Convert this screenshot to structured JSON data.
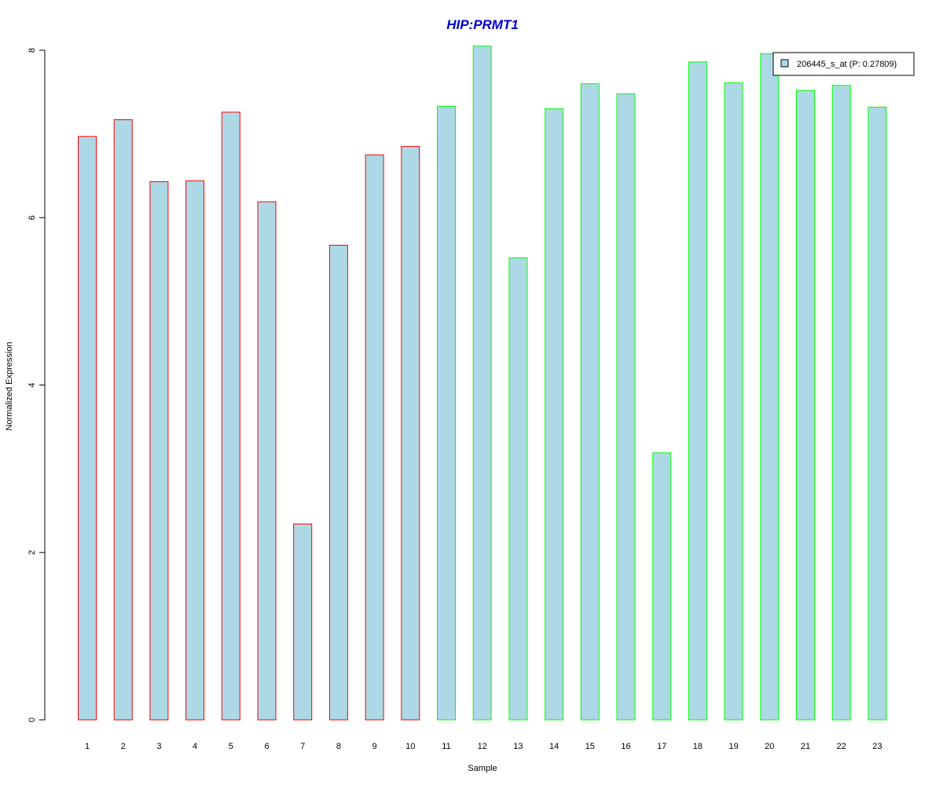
{
  "chart_data": {
    "type": "bar",
    "title": "HIP:PRMT1",
    "xlabel": "Sample",
    "ylabel": "Normalized Expression",
    "ylim": [
      0,
      8
    ],
    "yticks": [
      0,
      2,
      4,
      6,
      8
    ],
    "categories": [
      "1",
      "2",
      "3",
      "4",
      "5",
      "6",
      "7",
      "8",
      "9",
      "10",
      "11",
      "12",
      "13",
      "14",
      "15",
      "16",
      "17",
      "18",
      "19",
      "20",
      "21",
      "22",
      "23"
    ],
    "series": [
      {
        "name": "206445_s_at (P: 0.27809)",
        "values": [
          6.97,
          7.17,
          6.43,
          6.44,
          7.26,
          6.19,
          2.34,
          5.67,
          6.75,
          6.85,
          7.33,
          8.05,
          5.52,
          7.3,
          7.6,
          7.48,
          3.19,
          7.86,
          7.61,
          7.96,
          7.52,
          7.58,
          7.32
        ]
      }
    ],
    "groups": [
      "red",
      "red",
      "red",
      "red",
      "red",
      "red",
      "red",
      "red",
      "red",
      "red",
      "green",
      "green",
      "green",
      "green",
      "green",
      "green",
      "green",
      "green",
      "green",
      "green",
      "green",
      "green",
      "green"
    ],
    "legend_position": "top-right",
    "grid": false
  },
  "colors": {
    "bar_fill": "#add8e6",
    "red_border": "#ff0000",
    "green_border": "#00ff00",
    "title": "#0000cd",
    "axis": "#000000"
  }
}
